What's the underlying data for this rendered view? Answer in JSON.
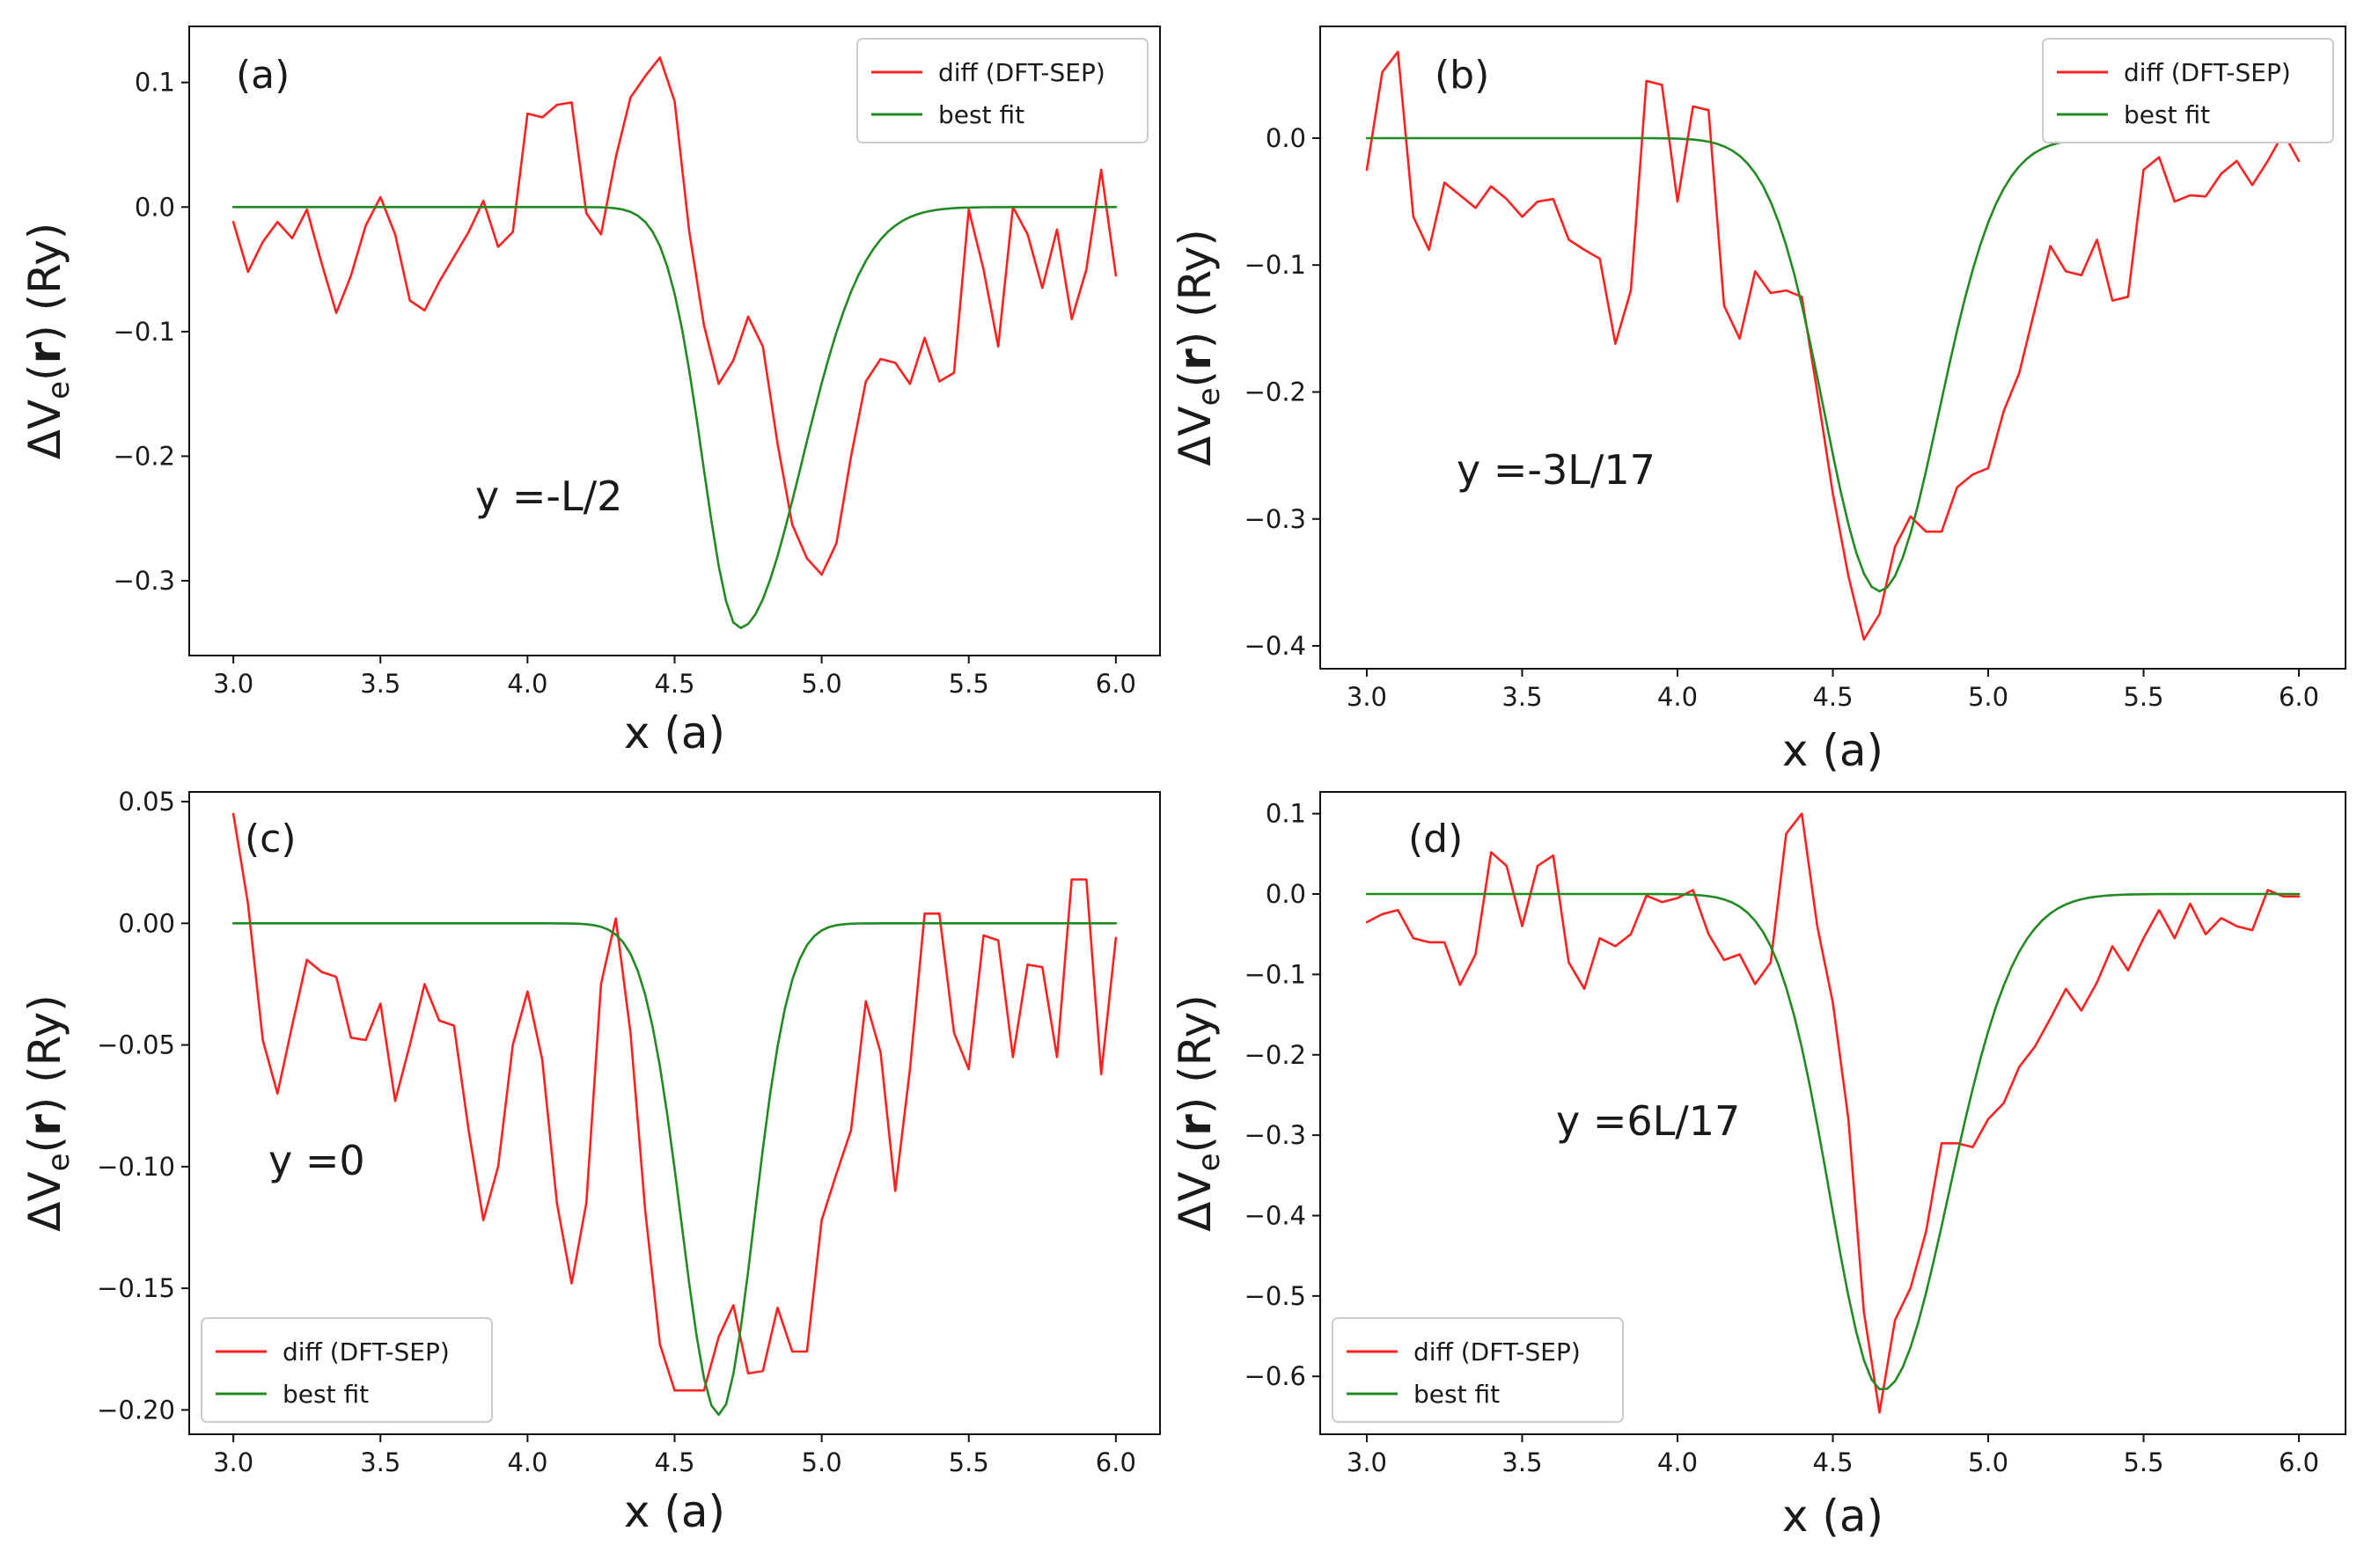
{
  "chart_data": [
    {
      "type": "line",
      "panel": "(a)",
      "annotation": "y =-L/2",
      "xlabel": "x (a)",
      "ylabel_parts": [
        "ΔV",
        "e",
        "(",
        "r",
        ") (Ry)"
      ],
      "xlim": [
        2.85,
        6.15
      ],
      "ylim": [
        -0.36,
        0.145
      ],
      "xticks": [
        3.0,
        3.5,
        4.0,
        4.5,
        5.0,
        5.5,
        6.0
      ],
      "xtick_labels": [
        "3.0",
        "3.5",
        "4.0",
        "4.5",
        "5.0",
        "5.5",
        "6.0"
      ],
      "yticks": [
        0.1,
        0.0,
        -0.1,
        -0.2,
        -0.3
      ],
      "ytick_labels": [
        "0.1",
        "0.0",
        "−0.1",
        "−0.2",
        "−0.3"
      ],
      "legend": {
        "position": "top-right",
        "entries": [
          "diff (DFT-SEP)",
          "best fit"
        ]
      },
      "series": [
        {
          "name": "diff (DFT-SEP)",
          "color": "#ff2020",
          "x": [
            3.0,
            3.05,
            3.1,
            3.15,
            3.2,
            3.25,
            3.3,
            3.35,
            3.4,
            3.45,
            3.5,
            3.55,
            3.6,
            3.65,
            3.7,
            3.75,
            3.8,
            3.85,
            3.9,
            3.95,
            4.0,
            4.05,
            4.1,
            4.15,
            4.2,
            4.25,
            4.3,
            4.35,
            4.4,
            4.45,
            4.5,
            4.55,
            4.6,
            4.65,
            4.7,
            4.75,
            4.8,
            4.85,
            4.9,
            4.95,
            5.0,
            5.05,
            5.1,
            5.15,
            5.2,
            5.25,
            5.3,
            5.35,
            5.4,
            5.45,
            5.5,
            5.55,
            5.6,
            5.65,
            5.7,
            5.75,
            5.8,
            5.85,
            5.9,
            5.95,
            6.0
          ],
          "y": [
            -0.012,
            -0.052,
            -0.028,
            -0.012,
            -0.025,
            -0.002,
            -0.045,
            -0.085,
            -0.055,
            -0.015,
            0.008,
            -0.022,
            -0.075,
            -0.083,
            -0.06,
            -0.04,
            -0.02,
            0.005,
            -0.032,
            -0.02,
            0.075,
            0.072,
            0.082,
            0.084,
            -0.005,
            -0.022,
            0.04,
            0.088,
            0.105,
            0.12,
            0.085,
            -0.02,
            -0.095,
            -0.142,
            -0.123,
            -0.088,
            -0.112,
            -0.19,
            -0.255,
            -0.282,
            -0.295,
            -0.27,
            -0.2,
            -0.14,
            -0.122,
            -0.125,
            -0.142,
            -0.105,
            -0.14,
            -0.133,
            -0.002,
            -0.05,
            -0.112,
            0.0,
            -0.022,
            -0.065,
            -0.018,
            -0.09,
            -0.05,
            0.03,
            -0.055
          ]
        },
        {
          "name": "best fit",
          "color": "#218a21",
          "kind": "gauss",
          "params": {
            "c": 4.72,
            "amp": -0.338,
            "sl": 0.175,
            "sr": 0.3,
            "x0": 3.0,
            "x1": 6.0
          }
        }
      ]
    },
    {
      "type": "line",
      "panel": "(b)",
      "annotation": "y =-3L/17",
      "xlabel": "x (a)",
      "ylabel_parts": [
        "ΔV",
        "e",
        "(",
        "r",
        ") (Ry)"
      ],
      "xlim": [
        2.85,
        6.15
      ],
      "ylim": [
        -0.418,
        0.088
      ],
      "xticks": [
        3.0,
        3.5,
        4.0,
        4.5,
        5.0,
        5.5,
        6.0
      ],
      "xtick_labels": [
        "3.0",
        "3.5",
        "4.0",
        "4.5",
        "5.0",
        "5.5",
        "6.0"
      ],
      "yticks": [
        0.0,
        -0.1,
        -0.2,
        -0.3,
        -0.4
      ],
      "ytick_labels": [
        "0.0",
        "−0.1",
        "−0.2",
        "−0.3",
        "−0.4"
      ],
      "legend": {
        "position": "top-right",
        "entries": [
          "diff (DFT-SEP)",
          "best fit"
        ]
      },
      "series": [
        {
          "name": "diff (DFT-SEP)",
          "color": "#ff2020",
          "x": [
            3.0,
            3.05,
            3.1,
            3.15,
            3.2,
            3.25,
            3.3,
            3.35,
            3.4,
            3.45,
            3.5,
            3.55,
            3.6,
            3.65,
            3.7,
            3.75,
            3.8,
            3.85,
            3.9,
            3.95,
            4.0,
            4.05,
            4.1,
            4.15,
            4.2,
            4.25,
            4.3,
            4.35,
            4.4,
            4.45,
            4.5,
            4.55,
            4.6,
            4.65,
            4.7,
            4.75,
            4.8,
            4.85,
            4.9,
            4.95,
            5.0,
            5.05,
            5.1,
            5.15,
            5.2,
            5.25,
            5.3,
            5.35,
            5.4,
            5.45,
            5.5,
            5.55,
            5.6,
            5.65,
            5.7,
            5.75,
            5.8,
            5.85,
            5.9,
            5.95,
            6.0
          ],
          "y": [
            -0.025,
            0.052,
            0.068,
            -0.062,
            -0.088,
            -0.035,
            -0.045,
            -0.055,
            -0.038,
            -0.048,
            -0.062,
            -0.05,
            -0.048,
            -0.08,
            -0.088,
            -0.095,
            -0.162,
            -0.12,
            0.045,
            0.042,
            -0.05,
            0.025,
            0.022,
            -0.132,
            -0.158,
            -0.105,
            -0.122,
            -0.12,
            -0.125,
            -0.2,
            -0.28,
            -0.345,
            -0.395,
            -0.375,
            -0.322,
            -0.298,
            -0.31,
            -0.31,
            -0.275,
            -0.265,
            -0.26,
            -0.215,
            -0.185,
            -0.135,
            -0.085,
            -0.105,
            -0.108,
            -0.08,
            -0.128,
            -0.125,
            -0.025,
            -0.015,
            -0.05,
            -0.045,
            -0.046,
            -0.028,
            -0.018,
            -0.037,
            -0.018,
            0.004,
            -0.018
          ]
        },
        {
          "name": "best fit",
          "color": "#218a21",
          "kind": "gauss",
          "params": {
            "c": 4.65,
            "amp": -0.357,
            "sl": 0.25,
            "sr": 0.27,
            "x0": 3.0,
            "x1": 6.0
          }
        }
      ]
    },
    {
      "type": "line",
      "panel": "(c)",
      "annotation": "y =0",
      "xlabel": "x (a)",
      "ylabel_parts": [
        "ΔV",
        "e",
        "(",
        "r",
        ") (Ry)"
      ],
      "xlim": [
        2.85,
        6.15
      ],
      "ylim": [
        -0.21,
        0.054
      ],
      "xticks": [
        3.0,
        3.5,
        4.0,
        4.5,
        5.0,
        5.5,
        6.0
      ],
      "xtick_labels": [
        "3.0",
        "3.5",
        "4.0",
        "4.5",
        "5.0",
        "5.5",
        "6.0"
      ],
      "yticks": [
        0.05,
        0.0,
        -0.05,
        -0.1,
        -0.15,
        -0.2
      ],
      "ytick_labels": [
        "0.05",
        "0.00",
        "−0.05",
        "−0.10",
        "−0.15",
        "−0.20"
      ],
      "legend": {
        "position": "bottom-left",
        "entries": [
          "diff (DFT-SEP)",
          "best fit"
        ]
      },
      "series": [
        {
          "name": "diff (DFT-SEP)",
          "color": "#ff2020",
          "x": [
            3.0,
            3.05,
            3.1,
            3.15,
            3.2,
            3.25,
            3.3,
            3.35,
            3.4,
            3.45,
            3.5,
            3.55,
            3.6,
            3.65,
            3.7,
            3.75,
            3.8,
            3.85,
            3.9,
            3.95,
            4.0,
            4.05,
            4.1,
            4.15,
            4.2,
            4.25,
            4.3,
            4.35,
            4.4,
            4.45,
            4.5,
            4.55,
            4.6,
            4.65,
            4.7,
            4.75,
            4.8,
            4.85,
            4.9,
            4.95,
            5.0,
            5.05,
            5.1,
            5.15,
            5.2,
            5.25,
            5.3,
            5.35,
            5.4,
            5.45,
            5.5,
            5.55,
            5.6,
            5.65,
            5.7,
            5.75,
            5.8,
            5.85,
            5.9,
            5.95,
            6.0
          ],
          "y": [
            0.045,
            0.008,
            -0.048,
            -0.07,
            -0.042,
            -0.015,
            -0.02,
            -0.022,
            -0.047,
            -0.048,
            -0.033,
            -0.073,
            -0.05,
            -0.025,
            -0.04,
            -0.042,
            -0.085,
            -0.122,
            -0.1,
            -0.05,
            -0.028,
            -0.056,
            -0.115,
            -0.148,
            -0.115,
            -0.025,
            0.002,
            -0.045,
            -0.118,
            -0.173,
            -0.192,
            -0.192,
            -0.192,
            -0.17,
            -0.157,
            -0.185,
            -0.184,
            -0.158,
            -0.176,
            -0.176,
            -0.122,
            -0.103,
            -0.085,
            -0.032,
            -0.053,
            -0.11,
            -0.06,
            0.004,
            0.004,
            -0.045,
            -0.06,
            -0.005,
            -0.007,
            -0.055,
            -0.017,
            -0.018,
            -0.055,
            0.018,
            0.018,
            -0.062,
            -0.006
          ]
        },
        {
          "name": "best fit",
          "color": "#218a21",
          "kind": "gauss",
          "params": {
            "c": 4.65,
            "amp": -0.202,
            "sl": 0.18,
            "sr": 0.17,
            "x0": 3.0,
            "x1": 6.0
          }
        }
      ]
    },
    {
      "type": "line",
      "panel": "(d)",
      "annotation": "y =6L/17",
      "xlabel": "x (a)",
      "ylabel_parts": [
        "ΔV",
        "e",
        "(",
        "r",
        ") (Ry)"
      ],
      "xlim": [
        2.85,
        6.15
      ],
      "ylim": [
        -0.672,
        0.127
      ],
      "xticks": [
        3.0,
        3.5,
        4.0,
        4.5,
        5.0,
        5.5,
        6.0
      ],
      "xtick_labels": [
        "3.0",
        "3.5",
        "4.0",
        "4.5",
        "5.0",
        "5.5",
        "6.0"
      ],
      "yticks": [
        0.1,
        0.0,
        -0.1,
        -0.2,
        -0.3,
        -0.4,
        -0.5,
        -0.6
      ],
      "ytick_labels": [
        "0.1",
        "0.0",
        "−0.1",
        "−0.2",
        "−0.3",
        "−0.4",
        "−0.5",
        "−0.6"
      ],
      "legend": {
        "position": "bottom-left",
        "entries": [
          "diff (DFT-SEP)",
          "best fit"
        ]
      },
      "series": [
        {
          "name": "diff (DFT-SEP)",
          "color": "#ff2020",
          "x": [
            3.0,
            3.05,
            3.1,
            3.15,
            3.2,
            3.25,
            3.3,
            3.35,
            3.4,
            3.45,
            3.5,
            3.55,
            3.6,
            3.65,
            3.7,
            3.75,
            3.8,
            3.85,
            3.9,
            3.95,
            4.0,
            4.05,
            4.1,
            4.15,
            4.2,
            4.25,
            4.3,
            4.35,
            4.4,
            4.45,
            4.5,
            4.55,
            4.6,
            4.65,
            4.7,
            4.75,
            4.8,
            4.85,
            4.9,
            4.95,
            5.0,
            5.05,
            5.1,
            5.15,
            5.2,
            5.25,
            5.3,
            5.35,
            5.4,
            5.45,
            5.5,
            5.55,
            5.6,
            5.65,
            5.7,
            5.75,
            5.8,
            5.85,
            5.9,
            5.95,
            6.0
          ],
          "y": [
            -0.035,
            -0.025,
            -0.02,
            -0.055,
            -0.06,
            -0.06,
            -0.113,
            -0.075,
            0.052,
            0.035,
            -0.04,
            0.035,
            0.048,
            -0.085,
            -0.118,
            -0.055,
            -0.065,
            -0.05,
            -0.002,
            -0.01,
            -0.005,
            0.005,
            -0.05,
            -0.082,
            -0.075,
            -0.112,
            -0.085,
            0.075,
            0.1,
            -0.04,
            -0.135,
            -0.28,
            -0.52,
            -0.645,
            -0.53,
            -0.49,
            -0.42,
            -0.31,
            -0.31,
            -0.315,
            -0.28,
            -0.26,
            -0.215,
            -0.19,
            -0.155,
            -0.118,
            -0.145,
            -0.11,
            -0.065,
            -0.095,
            -0.055,
            -0.02,
            -0.055,
            -0.012,
            -0.05,
            -0.03,
            -0.04,
            -0.045,
            0.005,
            -0.003,
            -0.003
          ]
        },
        {
          "name": "best fit",
          "color": "#218a21",
          "kind": "gauss",
          "params": {
            "c": 4.66,
            "amp": -0.617,
            "sl": 0.24,
            "sr": 0.3,
            "x0": 3.0,
            "x1": 6.0
          }
        }
      ]
    }
  ]
}
